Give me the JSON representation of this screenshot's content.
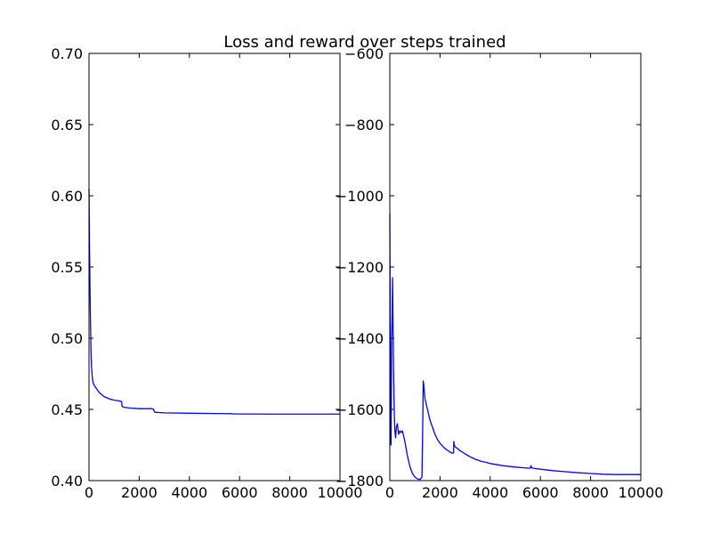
{
  "chart_data": {
    "title": "Loss and reward over steps trained",
    "line_color": "#0000ff",
    "grid": false,
    "charts": [
      {
        "type": "line",
        "subplot": "left",
        "xlabel": "",
        "ylabel": "",
        "xlim": [
          0,
          10000
        ],
        "ylim": [
          0.4,
          0.7
        ],
        "xticks": [
          0,
          2000,
          4000,
          6000,
          8000,
          10000
        ],
        "xtick_labels": [
          "0",
          "2000",
          "4000",
          "6000",
          "8000",
          "10000"
        ],
        "yticks": [
          0.4,
          0.45,
          0.5,
          0.55,
          0.6,
          0.65,
          0.7
        ],
        "ytick_labels": [
          "0.40",
          "0.45",
          "0.50",
          "0.55",
          "0.60",
          "0.65",
          "0.70"
        ],
        "series": [
          {
            "x": [
              0,
              20,
              40,
              60,
              80,
              100,
              130,
              160,
              200,
              300,
              400,
              500,
              600,
              800,
              1000,
              1200,
              1300,
              1320,
              1400,
              1600,
              2000,
              2500,
              2560,
              2620,
              3000,
              4000,
              5000,
              5700,
              5750,
              6000,
              7000,
              8000,
              9000,
              10000
            ],
            "y": [
              0.605,
              0.565,
              0.535,
              0.51,
              0.49,
              0.48,
              0.473,
              0.469,
              0.467,
              0.4645,
              0.462,
              0.4605,
              0.459,
              0.4575,
              0.4565,
              0.456,
              0.4555,
              0.452,
              0.4515,
              0.451,
              0.4505,
              0.4505,
              0.4502,
              0.448,
              0.4476,
              0.4473,
              0.4471,
              0.447,
              0.4468,
              0.4468,
              0.4467,
              0.4467,
              0.4467,
              0.4467
            ]
          }
        ]
      },
      {
        "type": "line",
        "subplot": "right",
        "xlabel": "",
        "ylabel": "",
        "xlim": [
          0,
          10000
        ],
        "ylim": [
          -1800,
          -600
        ],
        "xticks": [
          0,
          2000,
          4000,
          6000,
          8000,
          10000
        ],
        "xtick_labels": [
          "0",
          "2000",
          "4000",
          "6000",
          "8000",
          "10000"
        ],
        "yticks": [
          -1800,
          -1600,
          -1400,
          -1200,
          -1000,
          -800,
          -600
        ],
        "ytick_labels": [
          "−1800",
          "−1600",
          "−1400",
          "−1200",
          "−1000",
          "−800",
          "−600"
        ],
        "series": [
          {
            "x": [
              0,
              15,
              30,
              50,
              70,
              90,
              110,
              130,
              150,
              175,
              200,
              230,
              260,
              300,
              350,
              400,
              450,
              500,
              600,
              700,
              800,
              900,
              1000,
              1100,
              1200,
              1280,
              1300,
              1320,
              1330,
              1350,
              1400,
              1500,
              1600,
              1700,
              1800,
              1900,
              2000,
              2100,
              2200,
              2300,
              2400,
              2500,
              2540,
              2550,
              2570,
              2600,
              2700,
              2800,
              2900,
              3000,
              3200,
              3400,
              3500,
              3600,
              3800,
              4000,
              4500,
              5000,
              5500,
              5600,
              5620,
              5650,
              5700,
              6000,
              6500,
              7000,
              7500,
              8000,
              8500,
              9000,
              9500,
              10000
            ],
            "y": [
              -1050,
              -1350,
              -1690,
              -1700,
              -1400,
              -1350,
              -1230,
              -1380,
              -1500,
              -1600,
              -1660,
              -1680,
              -1650,
              -1640,
              -1670,
              -1660,
              -1665,
              -1660,
              -1690,
              -1730,
              -1760,
              -1780,
              -1790,
              -1795,
              -1797,
              -1790,
              -1700,
              -1600,
              -1520,
              -1530,
              -1570,
              -1600,
              -1630,
              -1650,
              -1670,
              -1685,
              -1695,
              -1703,
              -1710,
              -1715,
              -1720,
              -1723,
              -1722,
              -1690,
              -1700,
              -1705,
              -1710,
              -1716,
              -1720,
              -1725,
              -1733,
              -1740,
              -1742,
              -1745,
              -1748,
              -1752,
              -1758,
              -1762,
              -1765,
              -1765,
              -1758,
              -1763,
              -1765,
              -1768,
              -1772,
              -1775,
              -1778,
              -1780,
              -1782,
              -1783,
              -1783,
              -1783
            ]
          }
        ]
      }
    ]
  }
}
